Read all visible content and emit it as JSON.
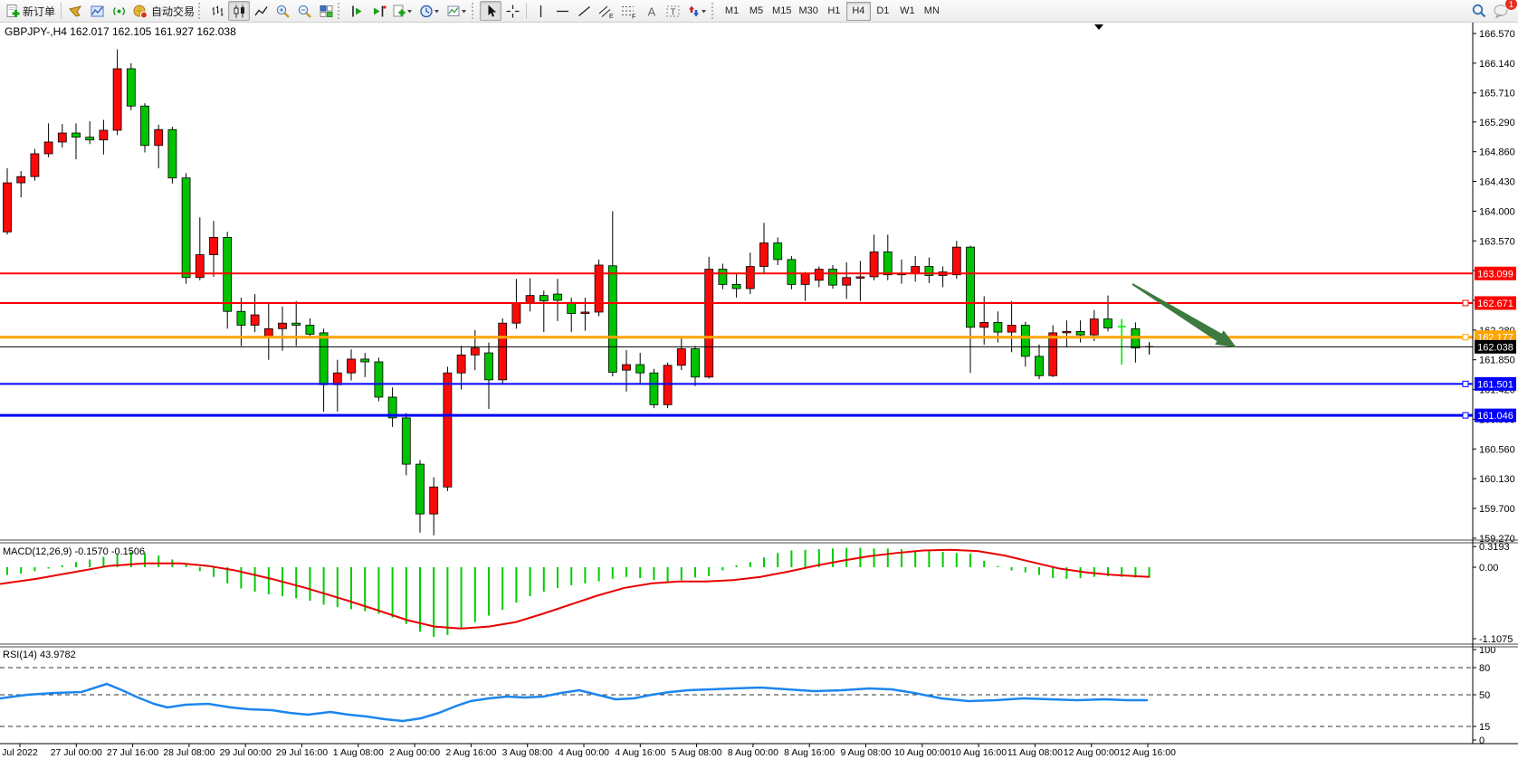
{
  "toolbar": {
    "new_order_label": "新订单",
    "auto_trading_label": "自动交易",
    "timeframes": [
      "M1",
      "M5",
      "M15",
      "M30",
      "H1",
      "H4",
      "D1",
      "W1",
      "MN"
    ],
    "active_timeframe": "H4",
    "notification_count": "1",
    "icon_names": [
      "new-order-icon",
      "gold-pointer-icon",
      "profile-chart-icon",
      "broadcast-icon",
      "auto-trading-icon",
      "bar-chart-icon",
      "candlestick-icon",
      "line-chart-icon",
      "zoom-in-icon",
      "zoom-out-icon",
      "tile-windows-icon",
      "auto-scroll-icon",
      "chart-shift-icon",
      "new-chart-icon",
      "period-clock-icon",
      "template-icon",
      "cursor-icon",
      "crosshair-icon",
      "vertical-line-icon",
      "horizontal-line-icon",
      "trendline-icon",
      "channel-icon",
      "fibonacci-icon",
      "text-icon",
      "text-label-icon",
      "arrows-icon",
      "search-icon",
      "chat-icon"
    ]
  },
  "chart": {
    "quote_line": "GBPJPY-,H4 162.017 162.105 161.927 162.038",
    "symbol": "GBPJPY-",
    "period": "H4",
    "open": "162.017",
    "high": "162.105",
    "low": "161.927",
    "close": "162.038"
  },
  "macd_panel": {
    "label": "MACD(12,26,9) -0.1570 -0.1506",
    "axis_labels": [
      "0.3193",
      "0.00",
      "-1.1075"
    ]
  },
  "rsi_panel": {
    "label": "RSI(14) 43.9782",
    "axis_labels": [
      "100",
      "80",
      "50",
      "15",
      "0"
    ]
  },
  "colors": {
    "up_candle": "#fb0909",
    "down_candle": "#00c400",
    "lime_candle": "#00f000",
    "macd_hist": "#00cc00",
    "macd_signal": "#e80000",
    "rsi_line": "#1c86ee",
    "res_line": "#fe0000",
    "mid_line": "#ffa500",
    "cur_line": "#000000",
    "sup_line": "#0000fe",
    "arrow": "#3d7a3f"
  },
  "chart_data": {
    "type": "candlestick",
    "title": "GBPJPY- H4",
    "price_axis": {
      "ticks": [
        166.57,
        166.14,
        165.71,
        165.29,
        164.86,
        164.43,
        164.0,
        163.57,
        163.14,
        162.71,
        162.28,
        161.85,
        161.42,
        160.99,
        160.56,
        160.13,
        159.7,
        159.27
      ],
      "visible_range": [
        159.2,
        166.73
      ]
    },
    "hlines": [
      {
        "price": 163.099,
        "label": "163.099",
        "color": "#fe0000",
        "w": 2,
        "handle": false
      },
      {
        "price": 162.671,
        "label": "162.671",
        "color": "#fe0000",
        "w": 2,
        "handle": true
      },
      {
        "price": 162.177,
        "label": "162.177",
        "color": "#ffa500",
        "w": 3,
        "handle": true
      },
      {
        "price": 162.038,
        "label": "162.038",
        "color": "#000000",
        "w": 1,
        "handle": false
      },
      {
        "price": 161.501,
        "label": "161.501",
        "color": "#0000fe",
        "w": 2,
        "handle": true
      },
      {
        "price": 161.046,
        "label": "161.046",
        "color": "#0000fe",
        "w": 3,
        "handle": true
      }
    ],
    "time_labels": [
      "Jul 2022",
      "27 Jul 00:00",
      "27 Jul 16:00",
      "28 Jul 08:00",
      "29 Jul 00:00",
      "29 Jul 16:00",
      "1 Aug 08:00",
      "2 Aug 00:00",
      "2 Aug 16:00",
      "3 Aug 08:00",
      "4 Aug 00:00",
      "4 Aug 16:00",
      "5 Aug 08:00",
      "8 Aug 00:00",
      "8 Aug 16:00",
      "9 Aug 08:00",
      "10 Aug 00:00",
      "10 Aug 16:00",
      "11 Aug 08:00",
      "12 Aug 00:00",
      "12 Aug 16:00"
    ],
    "candles": [
      [
        163.7,
        164.62,
        163.66,
        164.41
      ],
      [
        164.41,
        164.58,
        164.2,
        164.5
      ],
      [
        164.5,
        164.9,
        164.44,
        164.83
      ],
      [
        164.83,
        165.27,
        164.78,
        165.0
      ],
      [
        165.0,
        165.26,
        164.92,
        165.13
      ],
      [
        165.13,
        165.27,
        164.75,
        165.07
      ],
      [
        165.07,
        165.3,
        164.97,
        165.03
      ],
      [
        165.03,
        165.32,
        164.82,
        165.17
      ],
      [
        165.17,
        166.34,
        165.1,
        166.06
      ],
      [
        166.06,
        166.14,
        165.46,
        165.52
      ],
      [
        165.52,
        165.56,
        164.85,
        164.95
      ],
      [
        164.95,
        165.25,
        164.62,
        165.18
      ],
      [
        165.18,
        165.22,
        164.4,
        164.48
      ],
      [
        164.48,
        164.55,
        162.95,
        163.04
      ],
      [
        163.04,
        163.91,
        163.0,
        163.37
      ],
      [
        163.37,
        163.86,
        163.05,
        163.62
      ],
      [
        163.62,
        163.7,
        162.3,
        162.55
      ],
      [
        162.55,
        162.75,
        162.05,
        162.35
      ],
      [
        162.35,
        162.8,
        162.25,
        162.5
      ],
      [
        162.17,
        162.67,
        161.85,
        162.3
      ],
      [
        162.3,
        162.62,
        161.98,
        162.38
      ],
      [
        162.38,
        162.7,
        162.05,
        162.35
      ],
      [
        162.35,
        162.45,
        162.18,
        162.22
      ],
      [
        162.24,
        162.3,
        161.1,
        161.49
      ],
      [
        161.49,
        161.85,
        161.1,
        161.66
      ],
      [
        161.66,
        162.0,
        161.55,
        161.86
      ],
      [
        161.86,
        161.95,
        161.6,
        161.82
      ],
      [
        161.82,
        161.88,
        161.25,
        161.31
      ],
      [
        161.31,
        161.45,
        160.88,
        161.01
      ],
      [
        161.01,
        161.08,
        160.18,
        160.34
      ],
      [
        160.34,
        160.4,
        159.35,
        159.62
      ],
      [
        159.62,
        160.15,
        159.31,
        160.01
      ],
      [
        160.01,
        161.75,
        159.95,
        161.66
      ],
      [
        161.66,
        162.05,
        161.42,
        161.92
      ],
      [
        161.92,
        162.28,
        161.7,
        162.02
      ],
      [
        161.95,
        162.1,
        161.14,
        161.56
      ],
      [
        161.56,
        162.45,
        161.5,
        162.38
      ],
      [
        162.38,
        163.02,
        162.3,
        162.67
      ],
      [
        162.67,
        163.03,
        162.55,
        162.78
      ],
      [
        162.78,
        162.85,
        162.25,
        162.7
      ],
      [
        162.8,
        163.02,
        162.41,
        162.71
      ],
      [
        162.68,
        162.75,
        162.25,
        162.52
      ],
      [
        162.52,
        162.75,
        162.27,
        162.54
      ],
      [
        162.54,
        163.3,
        162.48,
        163.22
      ],
      [
        163.21,
        164.0,
        161.61,
        161.67
      ],
      [
        161.7,
        161.99,
        161.39,
        161.78
      ],
      [
        161.78,
        161.95,
        161.5,
        161.66
      ],
      [
        161.66,
        161.72,
        161.15,
        161.2
      ],
      [
        161.2,
        161.81,
        161.15,
        161.77
      ],
      [
        161.77,
        162.16,
        161.7,
        162.01
      ],
      [
        162.01,
        162.05,
        161.47,
        161.6
      ],
      [
        161.6,
        163.34,
        161.58,
        163.16
      ],
      [
        163.16,
        163.24,
        162.87,
        162.94
      ],
      [
        162.94,
        163.1,
        162.75,
        162.88
      ],
      [
        162.88,
        163.4,
        162.8,
        163.2
      ],
      [
        163.2,
        163.83,
        163.1,
        163.54
      ],
      [
        163.54,
        163.62,
        163.22,
        163.3
      ],
      [
        163.3,
        163.35,
        162.87,
        162.94
      ],
      [
        162.94,
        163.12,
        162.7,
        163.1
      ],
      [
        163.0,
        163.2,
        162.9,
        163.16
      ],
      [
        163.16,
        163.22,
        162.88,
        162.93
      ],
      [
        162.93,
        163.26,
        162.73,
        163.04
      ],
      [
        163.04,
        163.28,
        162.7,
        163.05
      ],
      [
        163.05,
        163.66,
        163.0,
        163.41
      ],
      [
        163.41,
        163.66,
        163.0,
        163.08
      ],
      [
        163.08,
        163.3,
        162.95,
        163.1
      ],
      [
        163.1,
        163.35,
        162.98,
        163.2
      ],
      [
        163.2,
        163.33,
        162.96,
        163.07
      ],
      [
        163.07,
        163.2,
        162.9,
        163.12
      ],
      [
        163.08,
        163.57,
        163.02,
        163.48
      ],
      [
        163.48,
        163.5,
        161.66,
        162.32
      ],
      [
        162.32,
        162.77,
        162.07,
        162.39
      ],
      [
        162.39,
        162.55,
        162.1,
        162.25
      ],
      [
        162.25,
        162.7,
        161.96,
        162.35
      ],
      [
        162.35,
        162.4,
        161.75,
        161.9
      ],
      [
        161.9,
        162.07,
        161.57,
        161.62
      ],
      [
        161.62,
        162.35,
        161.6,
        162.24
      ],
      [
        162.24,
        162.42,
        162.03,
        162.26
      ],
      [
        162.26,
        162.42,
        162.1,
        162.21
      ],
      [
        162.21,
        162.57,
        162.12,
        162.44
      ],
      [
        162.44,
        162.78,
        162.26,
        162.31
      ],
      [
        162.33,
        162.44,
        161.78,
        162.33,
        "lime"
      ],
      [
        162.3,
        162.39,
        161.81,
        162.02
      ],
      [
        162.017,
        162.105,
        161.927,
        162.038,
        "black"
      ]
    ],
    "macd": {
      "name": "MACD(12,26,9)",
      "main_value": -0.157,
      "signal_value": -0.1506,
      "axis": {
        "max": 0.3193,
        "zero": 0.0,
        "min": -1.1075
      },
      "histogram": [
        -0.12,
        -0.1,
        -0.06,
        -0.02,
        0.03,
        0.08,
        0.12,
        0.16,
        0.2,
        0.24,
        0.22,
        0.18,
        0.12,
        0.04,
        -0.06,
        -0.15,
        -0.25,
        -0.33,
        -0.38,
        -0.42,
        -0.45,
        -0.48,
        -0.52,
        -0.58,
        -0.62,
        -0.65,
        -0.68,
        -0.72,
        -0.78,
        -0.88,
        -1.0,
        -1.08,
        -1.05,
        -0.95,
        -0.85,
        -0.75,
        -0.66,
        -0.55,
        -0.45,
        -0.38,
        -0.32,
        -0.28,
        -0.25,
        -0.22,
        -0.18,
        -0.15,
        -0.17,
        -0.2,
        -0.22,
        -0.2,
        -0.16,
        -0.14,
        -0.05,
        0.03,
        0.08,
        0.15,
        0.22,
        0.26,
        0.27,
        0.28,
        0.29,
        0.3,
        0.3,
        0.29,
        0.29,
        0.28,
        0.26,
        0.25,
        0.24,
        0.22,
        0.21,
        0.1,
        0.02,
        -0.05,
        -0.08,
        -0.12,
        -0.17,
        -0.18,
        -0.17,
        -0.15,
        -0.14,
        -0.15,
        -0.16,
        -0.157
      ],
      "signal": [
        [
          0,
          -0.26
        ],
        [
          40,
          -0.18
        ],
        [
          80,
          -0.08
        ],
        [
          120,
          0.02
        ],
        [
          160,
          0.06
        ],
        [
          200,
          0.06
        ],
        [
          230,
          0.02
        ],
        [
          260,
          -0.05
        ],
        [
          300,
          -0.18
        ],
        [
          340,
          -0.33
        ],
        [
          380,
          -0.5
        ],
        [
          420,
          -0.68
        ],
        [
          450,
          -0.82
        ],
        [
          480,
          -0.92
        ],
        [
          510,
          -0.95
        ],
        [
          540,
          -0.92
        ],
        [
          570,
          -0.85
        ],
        [
          600,
          -0.72
        ],
        [
          630,
          -0.58
        ],
        [
          660,
          -0.44
        ],
        [
          690,
          -0.32
        ],
        [
          720,
          -0.25
        ],
        [
          750,
          -0.22
        ],
        [
          780,
          -0.22
        ],
        [
          810,
          -0.2
        ],
        [
          840,
          -0.15
        ],
        [
          870,
          -0.07
        ],
        [
          900,
          0.02
        ],
        [
          930,
          0.1
        ],
        [
          960,
          0.17
        ],
        [
          990,
          0.22
        ],
        [
          1020,
          0.26
        ],
        [
          1050,
          0.27
        ],
        [
          1080,
          0.25
        ],
        [
          1110,
          0.18
        ],
        [
          1140,
          0.08
        ],
        [
          1170,
          -0.02
        ],
        [
          1200,
          -0.08
        ],
        [
          1230,
          -0.12
        ],
        [
          1270,
          -0.15
        ]
      ]
    },
    "rsi": {
      "name": "RSI(14)",
      "value": 43.9782,
      "levels": [
        100,
        80,
        50,
        15,
        0
      ],
      "dashed_levels": [
        80,
        50,
        15
      ],
      "points": [
        [
          0,
          46
        ],
        [
          30,
          50
        ],
        [
          60,
          52
        ],
        [
          90,
          53
        ],
        [
          118,
          62
        ],
        [
          135,
          55
        ],
        [
          150,
          48
        ],
        [
          170,
          40
        ],
        [
          185,
          36
        ],
        [
          205,
          39
        ],
        [
          230,
          40
        ],
        [
          255,
          36
        ],
        [
          275,
          34
        ],
        [
          300,
          33
        ],
        [
          320,
          30
        ],
        [
          340,
          28
        ],
        [
          365,
          31
        ],
        [
          385,
          28
        ],
        [
          405,
          26
        ],
        [
          425,
          23
        ],
        [
          445,
          21
        ],
        [
          465,
          24
        ],
        [
          485,
          30
        ],
        [
          505,
          38
        ],
        [
          520,
          43
        ],
        [
          540,
          46
        ],
        [
          560,
          48
        ],
        [
          580,
          47
        ],
        [
          600,
          48
        ],
        [
          620,
          52
        ],
        [
          640,
          55
        ],
        [
          660,
          50
        ],
        [
          680,
          45
        ],
        [
          700,
          46
        ],
        [
          720,
          50
        ],
        [
          740,
          53
        ],
        [
          760,
          55
        ],
        [
          785,
          56
        ],
        [
          810,
          57
        ],
        [
          840,
          58
        ],
        [
          870,
          56
        ],
        [
          900,
          54
        ],
        [
          930,
          55
        ],
        [
          960,
          57
        ],
        [
          985,
          56
        ],
        [
          1010,
          52
        ],
        [
          1040,
          46
        ],
        [
          1070,
          43
        ],
        [
          1100,
          44
        ],
        [
          1130,
          46
        ],
        [
          1160,
          45
        ],
        [
          1190,
          44
        ],
        [
          1220,
          45
        ],
        [
          1245,
          44
        ],
        [
          1268,
          44
        ]
      ]
    },
    "annotation_arrow": {
      "from_price": 162.95,
      "to_price": 162.03,
      "direction": "down-right"
    }
  }
}
